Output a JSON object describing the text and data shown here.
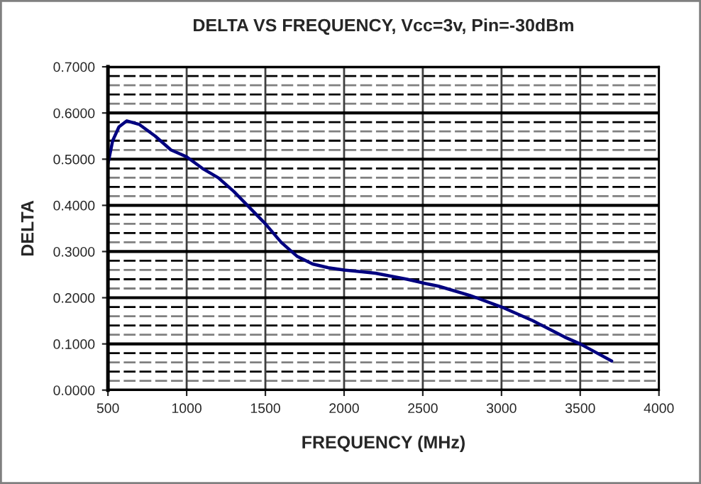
{
  "chart_data": {
    "type": "line",
    "title": "DELTA VS FREQUENCY, Vcc=3v, Pin=-30dBm",
    "xlabel": "FREQUENCY (MHz)",
    "ylabel": "DELTA",
    "x": [
      500,
      530,
      570,
      620,
      700,
      800,
      900,
      1000,
      1100,
      1200,
      1300,
      1400,
      1500,
      1600,
      1700,
      1800,
      1900,
      2000,
      2200,
      2400,
      2500,
      2600,
      2800,
      3000,
      3200,
      3400,
      3500,
      3700
    ],
    "series": [
      {
        "color": "#000080",
        "values": [
          0.49,
          0.54,
          0.57,
          0.583,
          0.575,
          0.55,
          0.52,
          0.505,
          0.48,
          0.46,
          0.43,
          0.395,
          0.36,
          0.32,
          0.29,
          0.273,
          0.265,
          0.26,
          0.253,
          0.24,
          0.232,
          0.225,
          0.205,
          0.18,
          0.15,
          0.115,
          0.1,
          0.063
        ]
      }
    ],
    "xlim": [
      500,
      4000
    ],
    "xticks": [
      500,
      1000,
      1500,
      2000,
      2500,
      3000,
      3500,
      4000
    ],
    "ylim": [
      0,
      0.7
    ],
    "yticks": [
      {
        "value": 0,
        "label": "0.0000"
      },
      {
        "value": 0.1,
        "label": "0.1000"
      },
      {
        "value": 0.2,
        "label": "0.2000"
      },
      {
        "value": 0.3,
        "label": "0.3000"
      },
      {
        "value": 0.4,
        "label": "0.4000"
      },
      {
        "value": 0.5,
        "label": "0.5000"
      },
      {
        "value": 0.6,
        "label": "0.6000"
      },
      {
        "value": 0.7,
        "label": "0.7000"
      }
    ],
    "grid": true,
    "legend": false,
    "marker": "none",
    "line_style": "solid"
  }
}
